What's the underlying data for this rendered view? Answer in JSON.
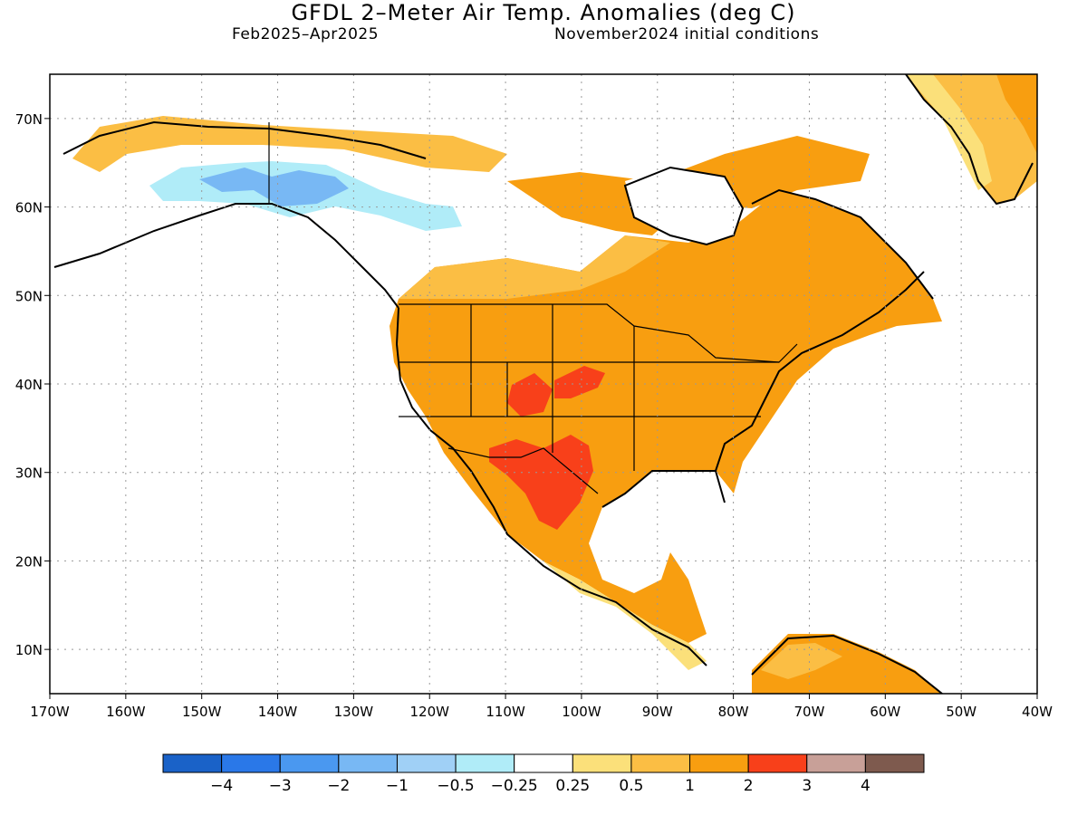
{
  "title": "GFDL 2–Meter Air Temp. Anomalies (deg C)",
  "period": "Feb2025–Apr2025",
  "initial_conditions": "November2024 initial conditions",
  "lat_labels": [
    {
      "lat": 70,
      "label": "70N"
    },
    {
      "lat": 60,
      "label": "60N"
    },
    {
      "lat": 50,
      "label": "50N"
    },
    {
      "lat": 40,
      "label": "40N"
    },
    {
      "lat": 30,
      "label": "30N"
    },
    {
      "lat": 20,
      "label": "20N"
    },
    {
      "lat": 10,
      "label": "10N"
    }
  ],
  "lon_labels": [
    {
      "lon": -170,
      "label": "170W"
    },
    {
      "lon": -160,
      "label": "160W"
    },
    {
      "lon": -150,
      "label": "150W"
    },
    {
      "lon": -140,
      "label": "140W"
    },
    {
      "lon": -130,
      "label": "130W"
    },
    {
      "lon": -120,
      "label": "120W"
    },
    {
      "lon": -110,
      "label": "110W"
    },
    {
      "lon": -100,
      "label": "100W"
    },
    {
      "lon": -90,
      "label": "90W"
    },
    {
      "lon": -80,
      "label": "80W"
    },
    {
      "lon": -70,
      "label": "70W"
    },
    {
      "lon": -60,
      "label": "60W"
    },
    {
      "lon": -50,
      "label": "50W"
    },
    {
      "lon": -40,
      "label": "40W"
    }
  ],
  "colorbar": {
    "colors": [
      "#1a62c8",
      "#2a78e8",
      "#4a98f0",
      "#78b8f4",
      "#a0d0f6",
      "#b0ecf8",
      "#ffffff",
      "#fbe07a",
      "#fbbe44",
      "#f89e10",
      "#f8401a",
      "#c8a098",
      "#7e5a4e"
    ],
    "labels": [
      "−4",
      "−3",
      "−2",
      "−1",
      "−0.5",
      "−0.25",
      "0.25",
      "0.5",
      "1",
      "2",
      "3",
      "4"
    ]
  }
}
